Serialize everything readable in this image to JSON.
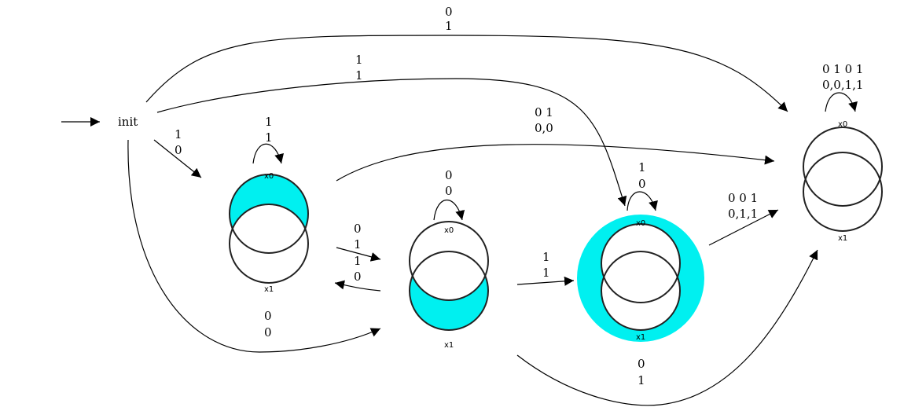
{
  "colors": {
    "fill": "#00f0f0",
    "stroke": "#000000"
  },
  "init_label": "init",
  "var_labels": {
    "x0": "x0",
    "x1": "x1"
  },
  "states": [
    {
      "id": "A",
      "fill": "x0 only"
    },
    {
      "id": "B",
      "fill": "x1 only"
    },
    {
      "id": "C",
      "fill": "outside both"
    },
    {
      "id": "D",
      "fill": "none"
    }
  ],
  "edges": [
    {
      "from": "init",
      "to": "D",
      "label": [
        "0",
        "1"
      ]
    },
    {
      "from": "init",
      "to": "C",
      "label": [
        "1",
        "1"
      ]
    },
    {
      "from": "init",
      "to": "A",
      "label": [
        "1",
        "0"
      ]
    },
    {
      "from": "init",
      "to": "B",
      "label": [
        "0",
        "0"
      ]
    },
    {
      "from": "A",
      "to": "A",
      "label": [
        "1",
        "1"
      ]
    },
    {
      "from": "A",
      "to": "D",
      "label": [
        "0 1",
        "0,0"
      ]
    },
    {
      "from": "A",
      "to": "B",
      "label": [
        "0",
        "1"
      ]
    },
    {
      "from": "B",
      "to": "A",
      "label": [
        "1",
        "0"
      ]
    },
    {
      "from": "B",
      "to": "B",
      "label": [
        "0",
        "0"
      ]
    },
    {
      "from": "B",
      "to": "C",
      "label": [
        "1",
        "1"
      ]
    },
    {
      "from": "B",
      "to": "D",
      "label": [
        "0",
        "1"
      ]
    },
    {
      "from": "C",
      "to": "C",
      "label": [
        "1",
        "0"
      ]
    },
    {
      "from": "C",
      "to": "D",
      "label": [
        "0 0 1",
        "0,1,1"
      ]
    },
    {
      "from": "D",
      "to": "D",
      "label": [
        "0 1 0 1",
        "0,0,1,1"
      ]
    }
  ]
}
